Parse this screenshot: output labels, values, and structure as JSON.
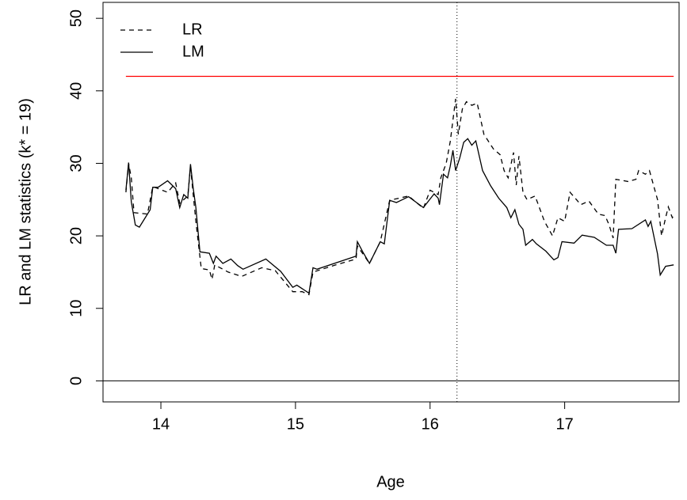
{
  "chart_data": {
    "type": "line",
    "x_label": "Age",
    "y_label": "LR and LM statistics (k* = 19)",
    "xlim": [
      13.57,
      17.85
    ],
    "ylim": [
      -2.9,
      52.2
    ],
    "xticks": [
      14,
      15,
      16,
      17
    ],
    "yticks": [
      0,
      10,
      20,
      30,
      40,
      50
    ],
    "legend": "top-left",
    "grid": false,
    "critical_value": 42,
    "critical_color": "#ff0000",
    "vline": 16.2,
    "hline": 0,
    "series": [
      {
        "name": "LR",
        "color": "#000000",
        "dash": "dashed",
        "x": [
          13.74,
          13.76,
          13.78,
          13.8,
          13.9,
          13.94,
          14.05,
          14.11,
          14.14,
          14.2,
          14.22,
          14.26,
          14.3,
          14.36,
          14.38,
          14.4,
          14.5,
          14.6,
          14.75,
          14.85,
          14.98,
          15.05,
          15.1,
          15.13,
          15.3,
          15.45,
          15.46,
          15.55,
          15.63,
          15.7,
          15.84,
          15.95,
          16.0,
          16.06,
          16.08,
          16.12,
          16.15,
          16.19,
          16.21,
          16.24,
          16.27,
          16.31,
          16.35,
          16.4,
          16.47,
          16.52,
          16.55,
          16.58,
          16.62,
          16.64,
          16.66,
          16.69,
          16.72,
          16.78,
          16.85,
          16.91,
          16.95,
          17.0,
          17.04,
          17.12,
          17.18,
          17.25,
          17.3,
          17.33,
          17.36,
          17.38,
          17.47,
          17.53,
          17.55,
          17.6,
          17.63,
          17.69,
          17.72,
          17.75,
          17.77,
          17.8,
          17.81
        ],
        "values": [
          26,
          30,
          28,
          23.2,
          23,
          26.8,
          26,
          27.3,
          24.5,
          25.5,
          29.5,
          22,
          15.5,
          15.3,
          14,
          16,
          15,
          14.4,
          15.6,
          15.2,
          12.3,
          12.3,
          11.9,
          15,
          16,
          16.8,
          18.6,
          16.2,
          19.2,
          24.9,
          25.5,
          23.8,
          26.3,
          25.7,
          28,
          30,
          33,
          38.9,
          34,
          37.5,
          38.5,
          38,
          38.3,
          34,
          32,
          31.2,
          29,
          28,
          31.5,
          27,
          31,
          26,
          25,
          25.5,
          22,
          20,
          22.5,
          22,
          26,
          24.3,
          24.8,
          23,
          22.8,
          21.5,
          19.7,
          27.8,
          27.5,
          27.8,
          29,
          28.5,
          29,
          25,
          20,
          22.5,
          24,
          22.5,
          22.8
        ]
      },
      {
        "name": "LM",
        "color": "#000000",
        "dash": "solid",
        "x": [
          13.74,
          13.76,
          13.78,
          13.81,
          13.84,
          13.92,
          13.94,
          13.98,
          14.05,
          14.11,
          14.14,
          14.17,
          14.2,
          14.22,
          14.24,
          14.26,
          14.29,
          14.36,
          14.39,
          14.41,
          14.46,
          14.52,
          14.57,
          14.61,
          14.78,
          14.89,
          14.98,
          15.01,
          15.1,
          15.13,
          15.16,
          15.45,
          15.46,
          15.5,
          15.55,
          15.63,
          15.66,
          15.7,
          15.75,
          15.84,
          15.95,
          16.03,
          16.06,
          16.07,
          16.1,
          16.13,
          16.15,
          16.17,
          16.19,
          16.22,
          16.25,
          16.28,
          16.31,
          16.34,
          16.39,
          16.45,
          16.51,
          16.57,
          16.6,
          16.63,
          16.66,
          16.69,
          16.71,
          16.76,
          16.79,
          16.86,
          16.92,
          16.95,
          16.98,
          17.07,
          17.13,
          17.22,
          17.31,
          17.36,
          17.38,
          17.4,
          17.5,
          17.6,
          17.62,
          17.64,
          17.69,
          17.71,
          17.75,
          17.81
        ],
        "values": [
          26.3,
          30.1,
          24.7,
          21.5,
          21.2,
          23.6,
          26.7,
          26.7,
          27.6,
          26.5,
          23.9,
          25.7,
          25.2,
          29.9,
          26.6,
          23.9,
          17.8,
          17.6,
          16.2,
          17.2,
          16.2,
          16.8,
          15.9,
          15.4,
          16.8,
          15.1,
          12.9,
          13.2,
          12.1,
          15.6,
          15.4,
          17.2,
          19.2,
          17.8,
          16.2,
          19.2,
          18.9,
          24.9,
          24.6,
          25.4,
          23.9,
          25.8,
          25.2,
          24.3,
          28.5,
          28,
          29.6,
          31.8,
          29,
          30.7,
          32.9,
          33.4,
          32.5,
          33.1,
          29,
          26.9,
          25.2,
          23.9,
          22.5,
          23.6,
          21.6,
          20.9,
          18.7,
          19.5,
          18.9,
          17.9,
          16.7,
          17,
          19.2,
          19,
          20.1,
          19.8,
          18.7,
          18.7,
          17.6,
          20.9,
          21,
          22.2,
          21.3,
          22,
          17.5,
          14.6,
          15.8,
          16
        ]
      }
    ]
  }
}
